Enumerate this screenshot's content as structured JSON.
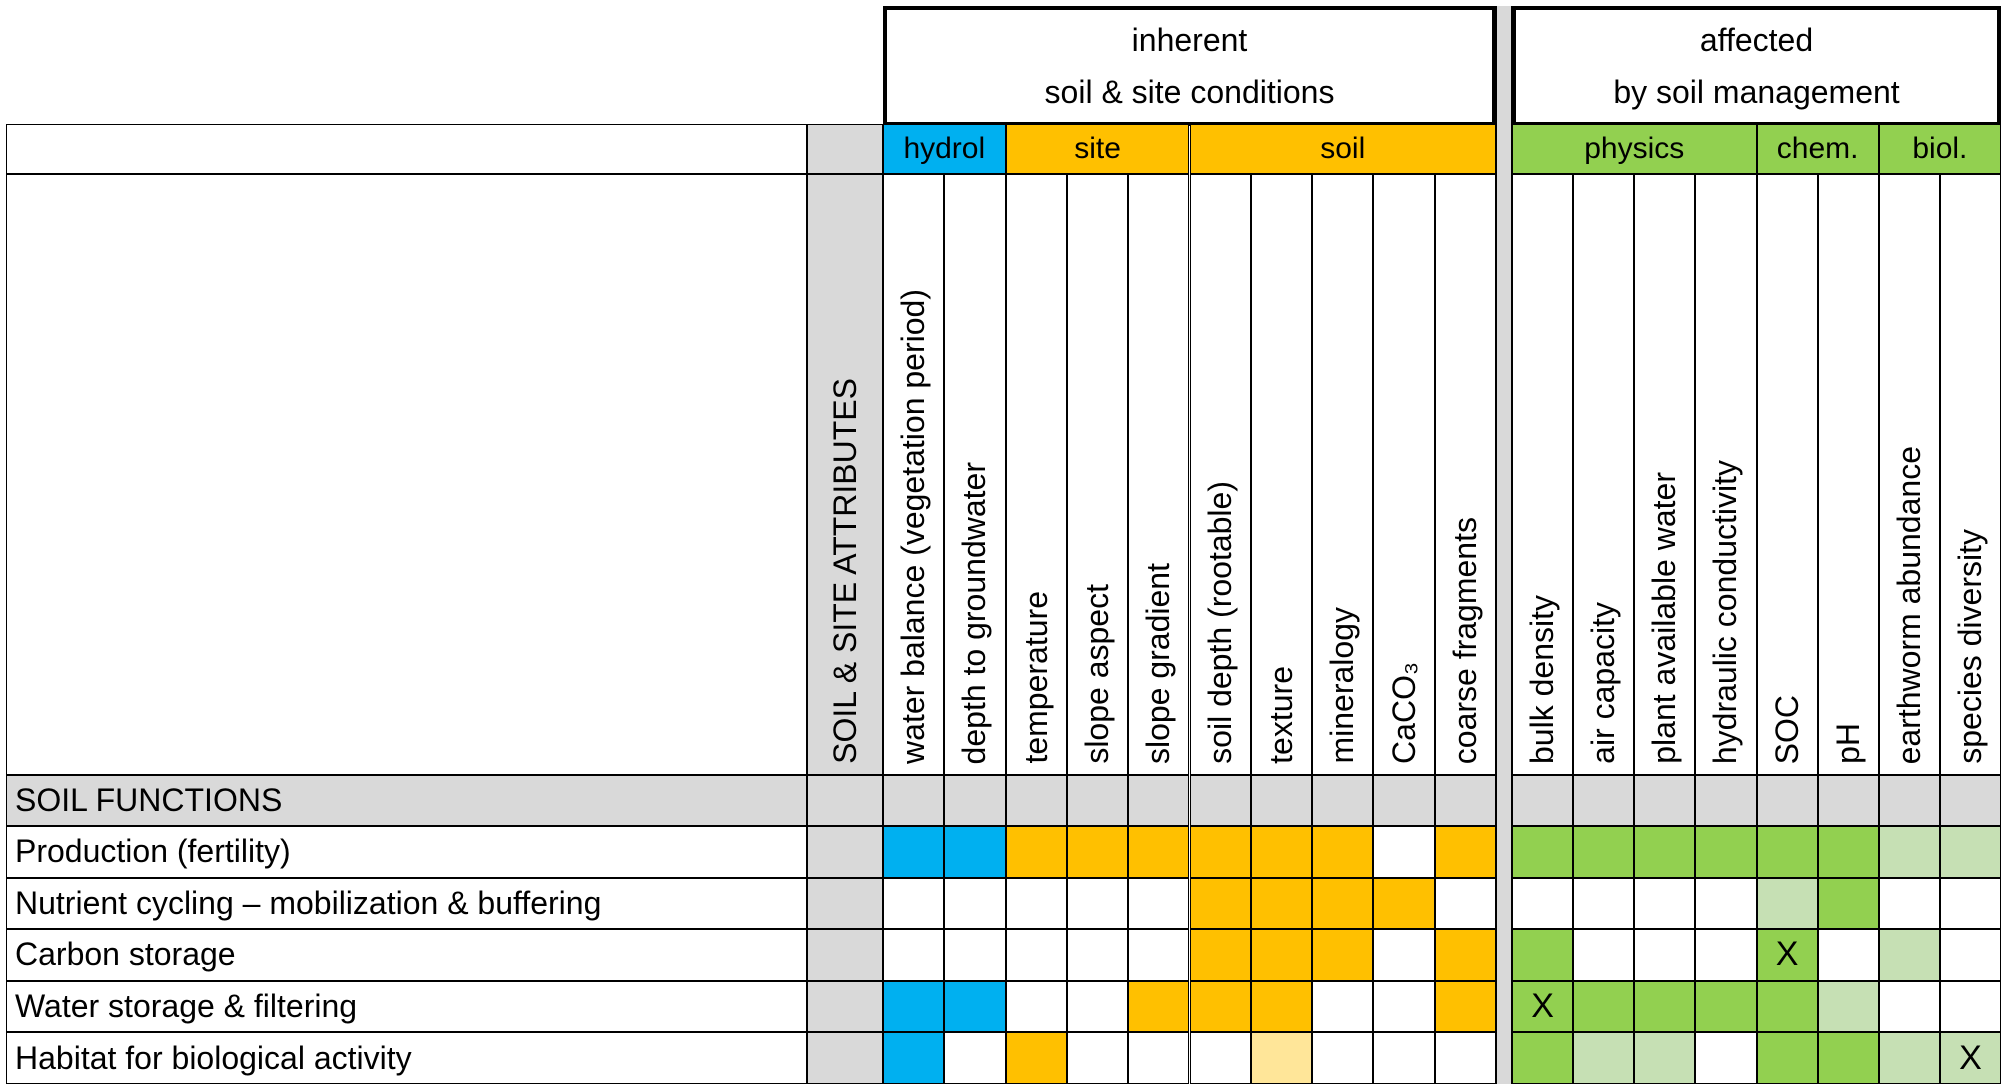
{
  "colors": {
    "blue": "#00b0f0",
    "orange": "#ffc000",
    "light_orange": "#ffe699",
    "green": "#92d050",
    "light_green": "#c6e0b4",
    "gray": "#d9d9d9",
    "white": "#ffffff"
  },
  "top_headers": [
    {
      "line1": "inherent",
      "line2": "soil & site conditions"
    },
    {
      "line1": "affected",
      "line2": "by soil management"
    }
  ],
  "groups_inherent": [
    {
      "label": "hydrol",
      "span": 2,
      "color": "blue"
    },
    {
      "label": "site",
      "span": 3,
      "color": "orange"
    },
    {
      "label": "soil",
      "span": 5,
      "color": "orange"
    }
  ],
  "groups_managed": [
    {
      "label": "physics",
      "span": 4,
      "color": "green"
    },
    {
      "label": "chem.",
      "span": 2,
      "color": "green"
    },
    {
      "label": "biol.",
      "span": 2,
      "color": "green"
    }
  ],
  "attributes_label": "SOIL & SITE ATTRIBUTES",
  "columns_inherent": [
    "water balance (vegetation period)",
    "depth to groundwater",
    "temperature",
    "slope aspect",
    "slope gradient",
    "soil depth (rootable)",
    "texture",
    "mineralogy",
    "CaCO₃",
    "coarse fragments"
  ],
  "columns_managed": [
    "bulk density",
    "air capacity",
    "plant available water",
    "hydraulic conductivity",
    "SOC",
    "pH",
    "earthworm abundance",
    "species diversity"
  ],
  "functions_header": "SOIL FUNCTIONS",
  "rows": [
    {
      "label": "Production (fertility)",
      "inherent": [
        "blue",
        "blue",
        "orange",
        "orange",
        "orange",
        "orange",
        "orange",
        "orange",
        "white",
        "orange"
      ],
      "managed": [
        "green",
        "green",
        "green",
        "green",
        "green",
        "green",
        "light_green",
        "light_green"
      ],
      "marks": [
        "",
        "",
        "",
        "",
        "",
        "",
        "",
        ""
      ]
    },
    {
      "label": "Nutrient cycling –  mobilization & buffering",
      "inherent": [
        "white",
        "white",
        "white",
        "white",
        "white",
        "orange",
        "orange",
        "orange",
        "orange",
        "white"
      ],
      "managed": [
        "white",
        "white",
        "white",
        "white",
        "light_green",
        "green",
        "white",
        "white"
      ],
      "marks": [
        "",
        "",
        "",
        "",
        "",
        "",
        "",
        ""
      ]
    },
    {
      "label": "Carbon storage",
      "inherent": [
        "white",
        "white",
        "white",
        "white",
        "white",
        "orange",
        "orange",
        "orange",
        "white",
        "orange"
      ],
      "managed": [
        "green",
        "white",
        "white",
        "white",
        "green",
        "white",
        "light_green",
        "white"
      ],
      "marks": [
        "",
        "",
        "",
        "",
        "X",
        "",
        "",
        ""
      ]
    },
    {
      "label": "Water storage & filtering",
      "inherent": [
        "blue",
        "blue",
        "white",
        "white",
        "orange",
        "orange",
        "orange",
        "white",
        "white",
        "orange"
      ],
      "managed": [
        "green",
        "green",
        "green",
        "green",
        "green",
        "light_green",
        "white",
        "white"
      ],
      "marks": [
        "X",
        "",
        "",
        "",
        "",
        "",
        "",
        ""
      ]
    },
    {
      "label": "Habitat for biological activity",
      "inherent": [
        "blue",
        "white",
        "orange",
        "white",
        "white",
        "white",
        "light_orange",
        "white",
        "white",
        "white"
      ],
      "managed": [
        "green",
        "light_green",
        "light_green",
        "white",
        "green",
        "green",
        "light_green",
        "light_green"
      ],
      "marks": [
        "",
        "",
        "",
        "",
        "",
        "",
        "",
        "X"
      ]
    }
  ]
}
